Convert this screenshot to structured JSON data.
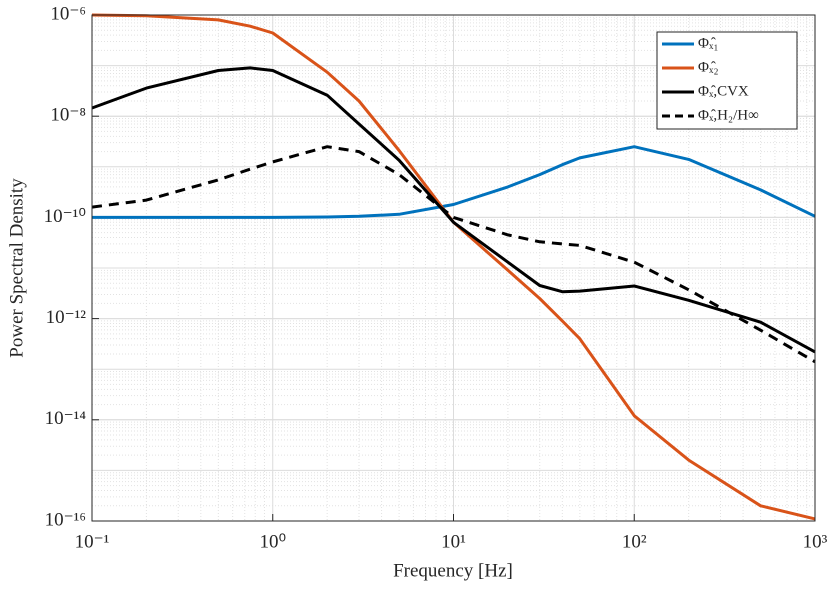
{
  "chart_data": {
    "type": "line",
    "xlabel": "Frequency [Hz]",
    "ylabel": "Power Spectral Density",
    "xlog": true,
    "ylog": true,
    "grid": true,
    "legend": "upper right",
    "xlim": [
      0.1,
      1000
    ],
    "ylim": [
      1e-16,
      1e-06
    ],
    "xticks": [
      {
        "value": 0.1,
        "label": "10⁻¹"
      },
      {
        "value": 1,
        "label": "10⁰"
      },
      {
        "value": 10,
        "label": "10¹"
      },
      {
        "value": 100,
        "label": "10²"
      },
      {
        "value": 1000,
        "label": "10³"
      }
    ],
    "yticks": [
      {
        "value": 1e-16,
        "label": "10⁻¹⁶"
      },
      {
        "value": 1e-14,
        "label": "10⁻¹⁴"
      },
      {
        "value": 1e-12,
        "label": "10⁻¹²"
      },
      {
        "value": 1e-10,
        "label": "10⁻¹⁰"
      },
      {
        "value": 1e-08,
        "label": "10⁻⁸"
      },
      {
        "value": 1e-06,
        "label": "10⁻⁶"
      }
    ],
    "x": [
      0.1,
      0.2,
      0.5,
      0.75,
      1,
      2,
      3,
      5,
      10,
      20,
      30,
      40,
      50,
      100,
      200,
      500,
      1000
    ],
    "series": [
      {
        "name": "Φₓ̂₁",
        "color": "#0072bd",
        "dash": false,
        "values": [
          1e-10,
          1e-10,
          1e-10,
          1e-10,
          1e-10,
          1.02e-10,
          1.05e-10,
          1.15e-10,
          1.8e-10,
          4e-10,
          7e-10,
          1.1e-09,
          1.5e-09,
          2.5e-09,
          1.4e-09,
          3.5e-10,
          1.05e-10
        ]
      },
      {
        "name": "Φₓ̂₂",
        "color": "#d95319",
        "dash": false,
        "values": [
          1e-06,
          9.7e-07,
          8e-07,
          6e-07,
          4.4e-07,
          7.4e-08,
          2e-08,
          2.1e-09,
          8e-11,
          9e-12,
          2.5e-12,
          9e-13,
          4e-13,
          1.2e-14,
          1.6e-15,
          2e-16,
          1.1e-16
        ]
      },
      {
        "name": "Φₓ̂,CVX",
        "color": "#000000",
        "dash": false,
        "values": [
          1.45e-08,
          3.6e-08,
          8e-08,
          9e-08,
          8e-08,
          2.6e-08,
          7e-09,
          1.35e-09,
          8e-11,
          1.3e-11,
          4.5e-12,
          3.4e-12,
          3.5e-12,
          4.4e-12,
          2.3e-12,
          8.5e-13,
          2.2e-13
        ]
      },
      {
        "name": "Φₓ̂,H₂/H∞",
        "color": "#000000",
        "dash": true,
        "values": [
          1.6e-10,
          2.2e-10,
          5.5e-10,
          9e-10,
          1.25e-09,
          2.5e-09,
          2e-09,
          7e-10,
          1e-10,
          4.5e-11,
          3.3e-11,
          3e-11,
          2.8e-11,
          1.3e-11,
          3.7e-12,
          5.9e-13,
          1.4e-13
        ]
      }
    ]
  }
}
